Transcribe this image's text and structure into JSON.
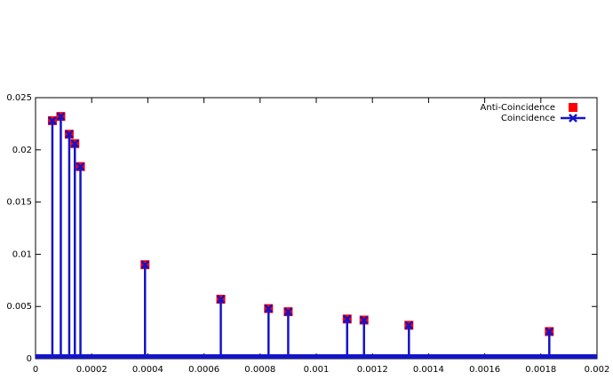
{
  "chart_data": {
    "type": "scatter",
    "x": [
      6e-05,
      9e-05,
      0.00012,
      0.00014,
      0.00016,
      0.00039,
      0.00066,
      0.00083,
      0.0009,
      0.00111,
      0.00117,
      0.00133,
      0.00183
    ],
    "series": [
      {
        "name": "Anti-Coincidence",
        "color": "#ff0000",
        "style": "points",
        "values": [
          0.0228,
          0.0232,
          0.0215,
          0.0206,
          0.0184,
          0.009,
          0.0057,
          0.0048,
          0.0045,
          0.0038,
          0.0037,
          0.0032,
          0.0026
        ]
      },
      {
        "name": "Coincidence",
        "color": "#1414c8",
        "style": "impulses",
        "values": [
          0.0228,
          0.0232,
          0.0215,
          0.0206,
          0.0184,
          0.009,
          0.0057,
          0.0048,
          0.0045,
          0.0038,
          0.0037,
          0.0032,
          0.0026
        ]
      }
    ],
    "xlim": [
      0,
      0.002
    ],
    "xticks": [
      0,
      0.0002,
      0.0004,
      0.0006,
      0.0008,
      0.001,
      0.0012,
      0.0014,
      0.0016,
      0.0018,
      0.002
    ],
    "ylim": [
      0,
      0.025
    ],
    "yticks": [
      0,
      0.005,
      0.01,
      0.015,
      0.02,
      0.025
    ],
    "legend": "top-right"
  }
}
